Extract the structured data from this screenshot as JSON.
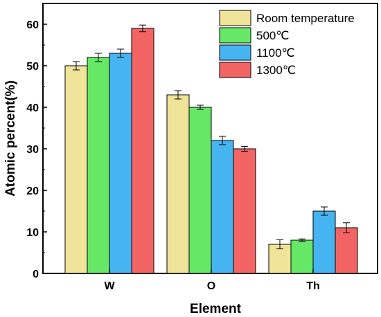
{
  "chart_data": {
    "type": "bar",
    "categories": [
      "W",
      "O",
      "Th"
    ],
    "series": [
      {
        "name": "Room temperature",
        "color": "#f0e49a",
        "values": [
          50,
          43,
          7
        ],
        "errors": [
          1.0,
          1.0,
          1.1
        ]
      },
      {
        "name": "500℃",
        "color": "#66e866",
        "values": [
          52,
          40,
          8
        ],
        "errors": [
          1.0,
          0.5,
          0.3
        ]
      },
      {
        "name": "1100℃",
        "color": "#46b4f0",
        "values": [
          53,
          32,
          15
        ],
        "errors": [
          1.0,
          1.0,
          1.0
        ]
      },
      {
        "name": "1300℃",
        "color": "#f26464",
        "values": [
          59,
          30,
          11
        ],
        "errors": [
          0.8,
          0.6,
          1.2
        ]
      }
    ],
    "xlabel": "Element",
    "ylabel": "Atomic percent(%)",
    "ylim": [
      0,
      65
    ],
    "yticks": [
      "0",
      "10",
      "20",
      "30",
      "40",
      "50",
      "60"
    ],
    "grid": false,
    "legend_position": "top-right"
  }
}
